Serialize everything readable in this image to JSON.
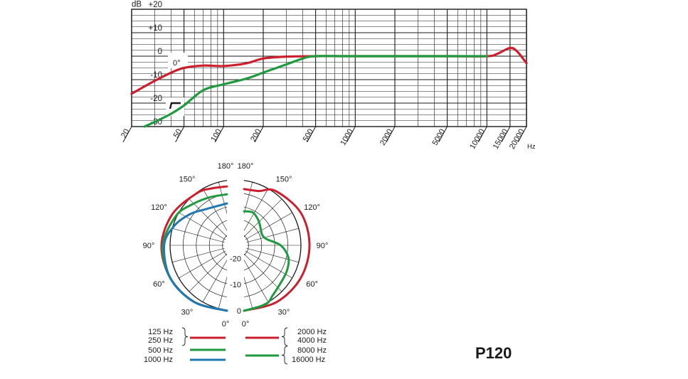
{
  "chart_data": [
    {
      "type": "line",
      "title": "",
      "ylabel": "dB",
      "xlabel": "Hz",
      "x_scale": "log",
      "xlim": [
        20,
        20000
      ],
      "ylim": [
        -30,
        20
      ],
      "y_ticks": [
        "+20",
        "+10",
        "0",
        "-10",
        "-20",
        "-30"
      ],
      "x_ticks": [
        "20",
        "50",
        "100",
        "200",
        "500",
        "1000",
        "2000",
        "5000",
        "10000",
        "15000",
        "20000"
      ],
      "angle_label": "0°",
      "grid": true,
      "series": [
        {
          "color": "#cc1f2e",
          "x": [
            20,
            30,
            40,
            50,
            70,
            100,
            150,
            200,
            300,
            500,
            1000,
            5000,
            10000,
            12000,
            15000,
            17000,
            20000
          ],
          "y": [
            -16,
            -10.5,
            -7,
            -5,
            -4,
            -4.2,
            -3,
            -1,
            -0.2,
            0,
            0,
            0,
            0,
            1,
            3.5,
            2,
            -3
          ]
        },
        {
          "color": "#1f9a3f",
          "x": [
            25,
            30,
            40,
            50,
            70,
            100,
            150,
            200,
            300,
            400,
            500,
            1000,
            5000,
            10000
          ],
          "y": [
            -30,
            -28,
            -24.5,
            -21,
            -14.5,
            -12,
            -9.5,
            -7,
            -3.5,
            -1,
            0,
            0,
            0,
            0
          ]
        }
      ]
    },
    {
      "type": "polar",
      "title": "",
      "angle_labels": [
        "180°",
        "150°",
        "120°",
        "90°",
        "60°",
        "30°",
        "0°"
      ],
      "radial_labels": [
        "-20",
        "-10",
        "0"
      ],
      "rlim": [
        -25,
        0
      ],
      "series": [
        {
          "color": "#cc1f2e",
          "side": "left",
          "angles": [
            0,
            30,
            60,
            90,
            120,
            150,
            165,
            180
          ],
          "values": [
            0,
            0,
            0,
            0,
            -1,
            -2,
            -2.5,
            -2.5
          ]
        },
        {
          "color": "#1f9a3f",
          "side": "left",
          "angles": [
            0,
            30,
            60,
            90,
            120,
            140,
            160,
            180
          ],
          "values": [
            0,
            0,
            0,
            -0.5,
            -2.5,
            -4.5,
            -5.5,
            -5.5
          ]
        },
        {
          "color": "#1f78b4",
          "side": "left",
          "angles": [
            0,
            30,
            60,
            90,
            110,
            130,
            150,
            180
          ],
          "values": [
            0,
            0,
            0,
            -1,
            -3.5,
            -6.5,
            -9,
            -9
          ]
        },
        {
          "color": "#cc1f2e",
          "side": "right",
          "angles": [
            0,
            30,
            60,
            90,
            120,
            150,
            165,
            180
          ],
          "values": [
            0,
            0,
            0,
            0,
            0,
            -1,
            -3.5,
            -3.5
          ]
        },
        {
          "color": "#1f9a3f",
          "side": "right",
          "angles": [
            0,
            20,
            30,
            45,
            60,
            75,
            90,
            105,
            120,
            135,
            150,
            165,
            180
          ],
          "values": [
            0,
            -1,
            -3,
            -5,
            -6,
            -7.5,
            -11,
            -16,
            -17,
            -16,
            -14,
            -12,
            -12
          ]
        }
      ],
      "legend": {
        "left_group1": [
          "125 Hz",
          "250 Hz"
        ],
        "left_group2": [
          "500 Hz"
        ],
        "left_group3": [
          "1000 Hz"
        ],
        "right_group1": [
          "2000 Hz",
          "4000 Hz"
        ],
        "right_group2": [
          "8000 Hz",
          "16000 Hz"
        ]
      }
    }
  ],
  "model": "P120"
}
